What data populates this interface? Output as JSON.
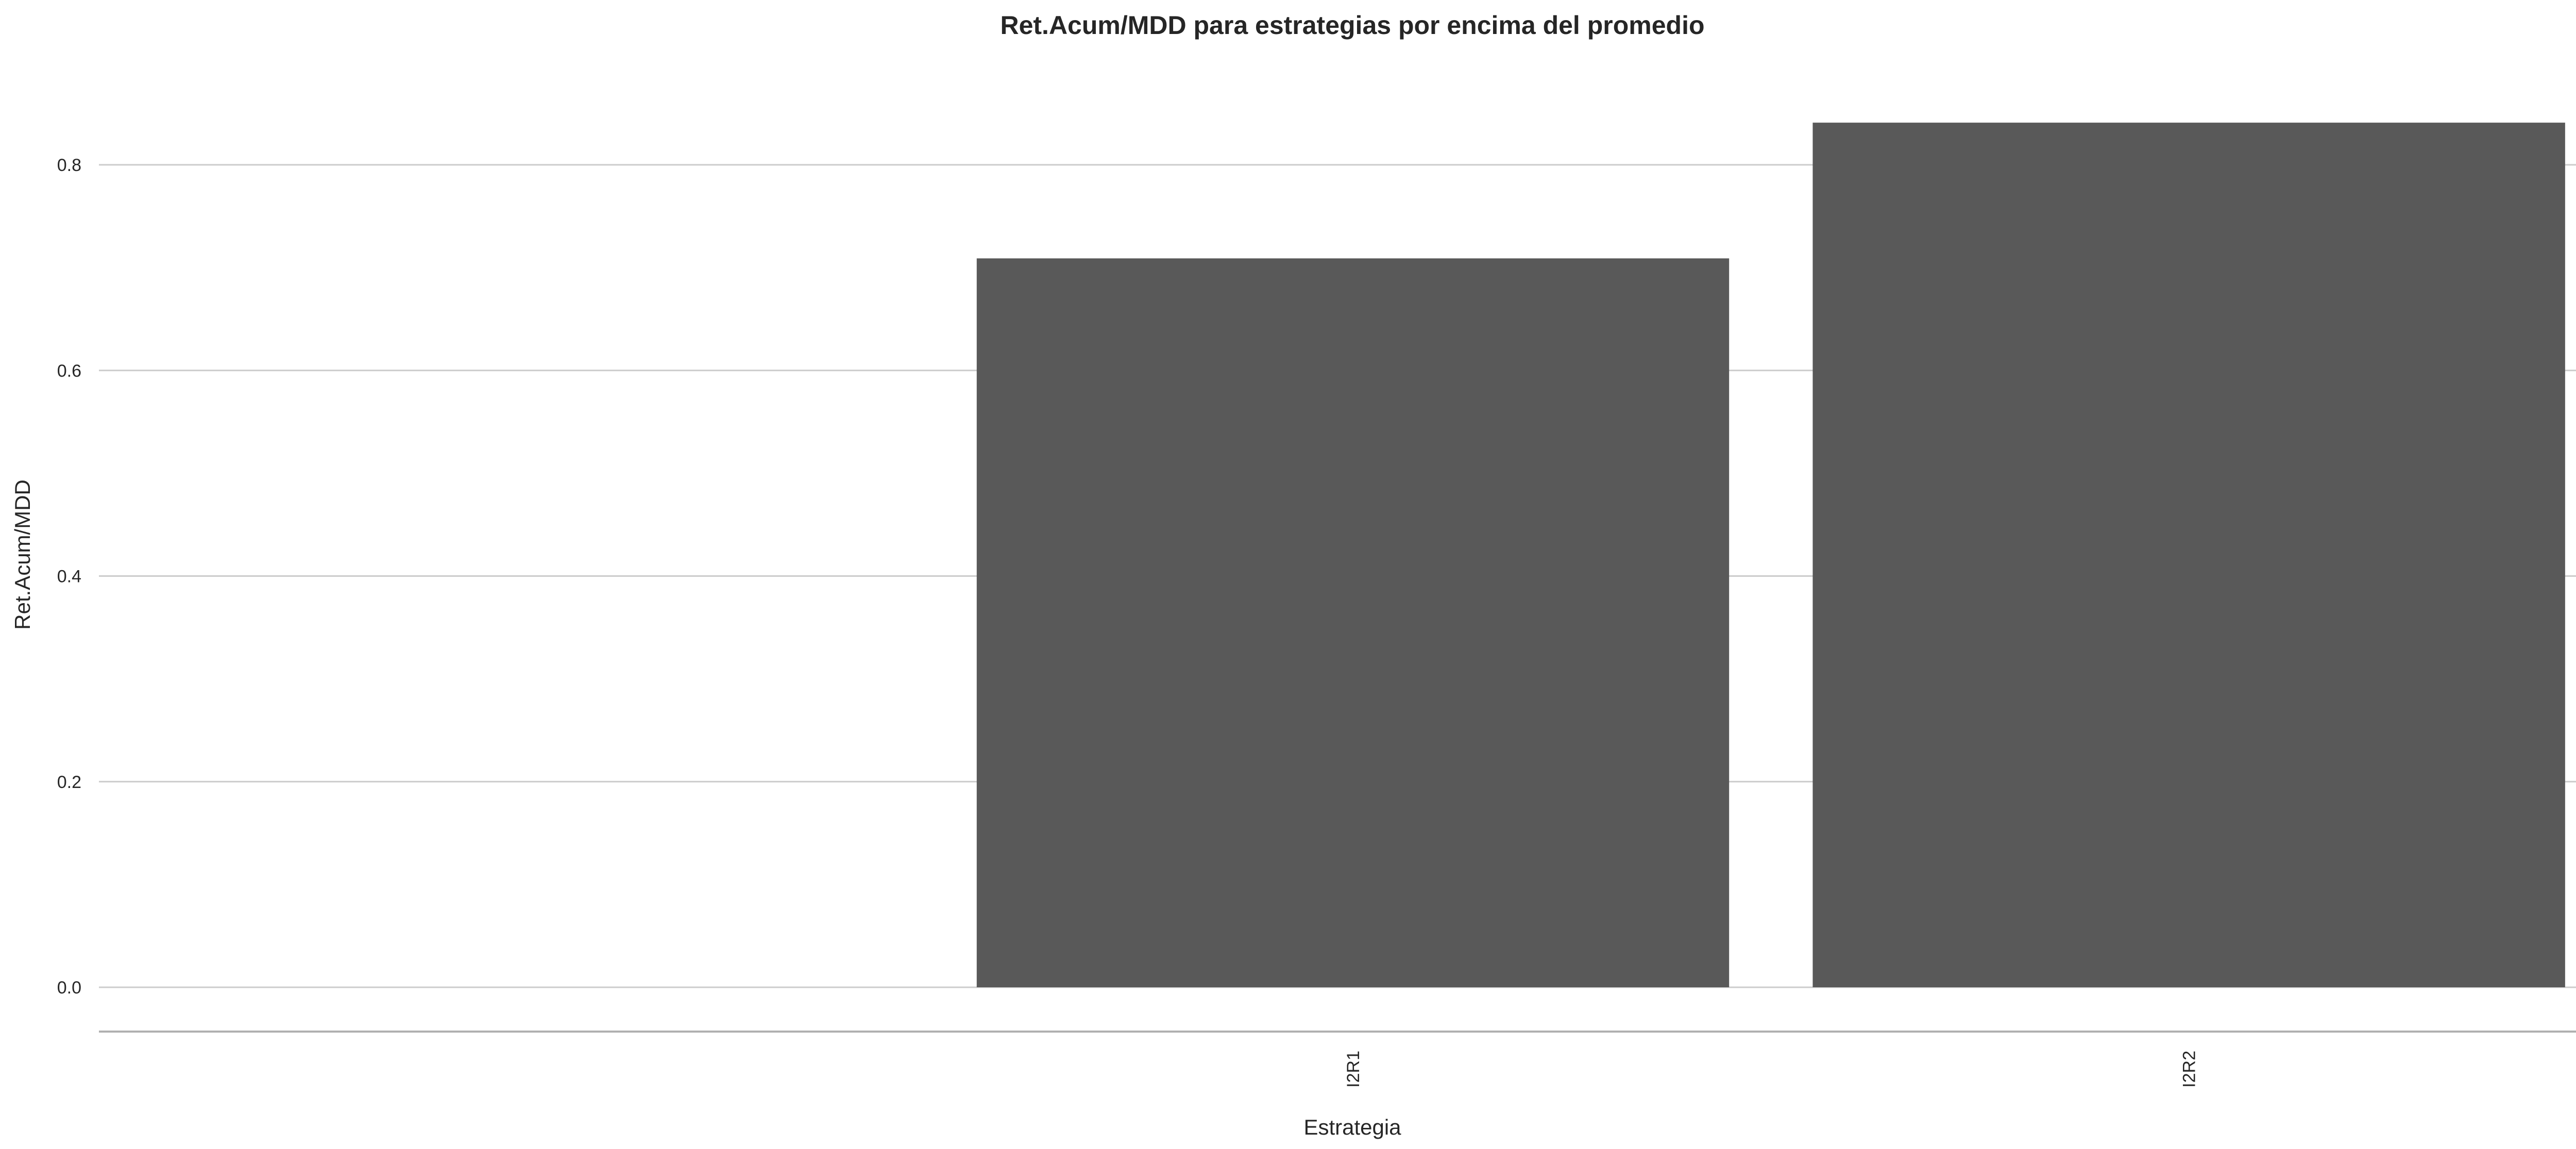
{
  "chart_data": {
    "type": "bar",
    "title": "Ret.Acum/MDD para estrategias por encima del promedio",
    "xlabel": "Estrategia",
    "ylabel": "Ret.Acum/MDD",
    "categories": [
      "",
      "I2R1",
      "I2R2"
    ],
    "values": [
      0,
      0.709,
      0.841
    ],
    "ylim": [
      -0.042,
      0.9
    ],
    "yticks": [
      "0.0",
      "0.2",
      "0.4",
      "0.6",
      "0.8"
    ],
    "grid": true,
    "bar_color": "#595959",
    "grid_color": "#cccccc"
  }
}
